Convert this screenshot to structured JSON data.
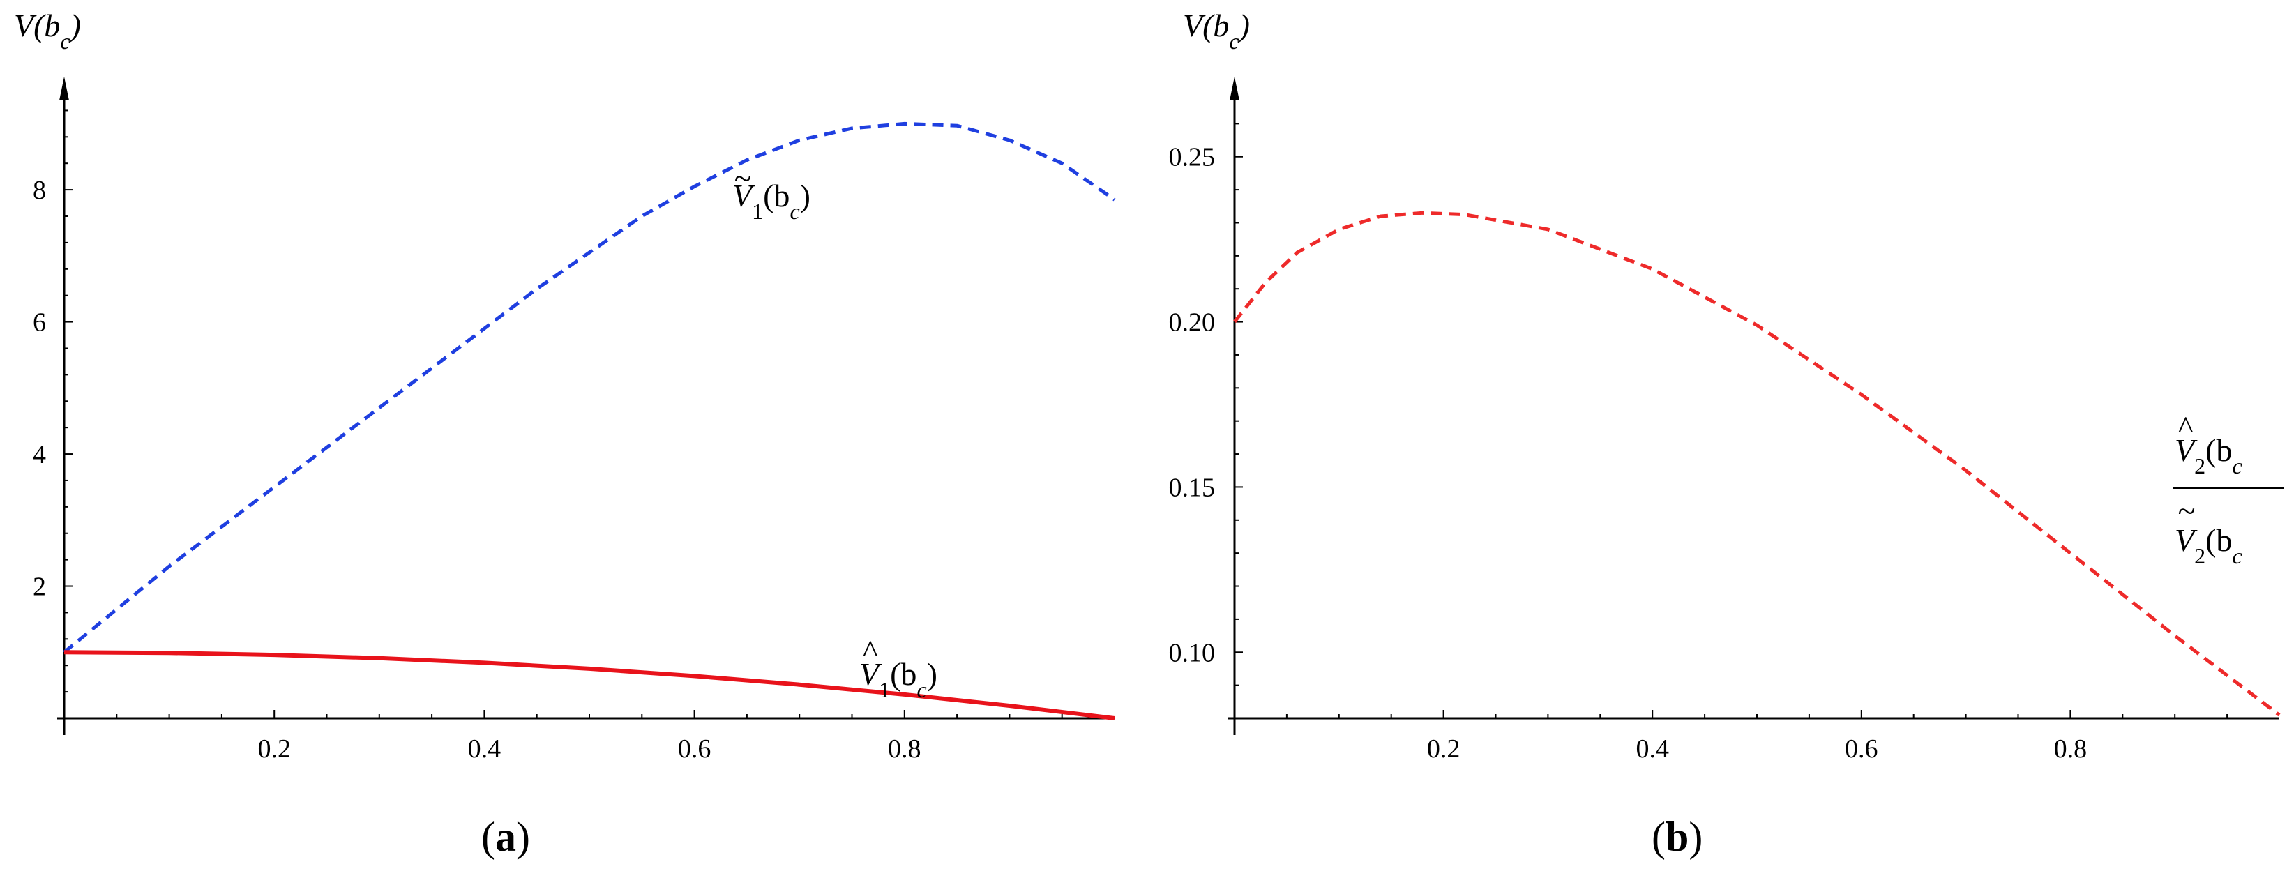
{
  "chart_data": [
    {
      "type": "line",
      "panel": "a",
      "caption_open": "(",
      "caption_letter": "a",
      "caption_close": ")",
      "ylabel": "V(b",
      "ylabel_sub": "c",
      "ylabel_close": ")",
      "xlim": [
        0,
        1
      ],
      "ylim": [
        0,
        9.5
      ],
      "x_ticks": [
        0.2,
        0.4,
        0.6,
        0.8
      ],
      "x_tick_labels": [
        "0.2",
        "0.4",
        "0.6",
        "0.8"
      ],
      "y_ticks": [
        2,
        4,
        6,
        8
      ],
      "y_tick_labels": [
        "2",
        "4",
        "6",
        "8"
      ],
      "series": [
        {
          "name": "Ṽ1(bc)",
          "label_main": "V",
          "label_accent": "~",
          "label_sub": "1",
          "label_arg": "(b",
          "label_arg_sub": "c",
          "label_close": ")",
          "style": "dashed",
          "color": "#1f3fe0",
          "x": [
            0,
            0.05,
            0.1,
            0.15,
            0.2,
            0.25,
            0.3,
            0.35,
            0.4,
            0.45,
            0.5,
            0.55,
            0.6,
            0.65,
            0.7,
            0.75,
            0.8,
            0.85,
            0.9,
            0.95,
            1.0
          ],
          "y": [
            1.0,
            1.65,
            2.3,
            2.9,
            3.5,
            4.1,
            4.7,
            5.3,
            5.9,
            6.5,
            7.05,
            7.6,
            8.05,
            8.45,
            8.75,
            8.93,
            9.0,
            8.97,
            8.75,
            8.4,
            7.85
          ]
        },
        {
          "name": "V̂1(bc)",
          "label_main": "V",
          "label_accent": "^",
          "label_sub": "1",
          "label_arg": "(b",
          "label_arg_sub": "c",
          "label_close": ")",
          "style": "solid",
          "color": "#e8131b",
          "x": [
            0,
            0.1,
            0.2,
            0.3,
            0.4,
            0.5,
            0.6,
            0.7,
            0.8,
            0.9,
            1.0
          ],
          "y": [
            1.0,
            0.99,
            0.96,
            0.91,
            0.84,
            0.75,
            0.64,
            0.51,
            0.36,
            0.19,
            0.0
          ]
        }
      ]
    },
    {
      "type": "line",
      "panel": "b",
      "caption_open": "(",
      "caption_letter": "b",
      "caption_close": ")",
      "ylabel": "V(b",
      "ylabel_sub": "c",
      "ylabel_close": ")",
      "xlim": [
        0,
        1
      ],
      "ylim": [
        0.08,
        0.27
      ],
      "x_ticks": [
        0.2,
        0.4,
        0.6,
        0.8
      ],
      "x_tick_labels": [
        "0.2",
        "0.4",
        "0.6",
        "0.8"
      ],
      "y_ticks": [
        0.1,
        0.15,
        0.2,
        0.25
      ],
      "y_tick_labels": [
        "0.10",
        "0.15",
        "0.20",
        "0.25"
      ],
      "annotation": {
        "top_main": "V",
        "top_accent": "^",
        "top_sub": "2",
        "top_arg": "(b",
        "top_arg_sub": "c",
        "bottom_main": "V",
        "bottom_accent": "~",
        "bottom_sub": "2",
        "bottom_arg": "(b",
        "bottom_arg_sub": "c"
      },
      "series": [
        {
          "style": "dashed",
          "color": "#ee2a2a",
          "x": [
            0,
            0.03,
            0.06,
            0.1,
            0.14,
            0.18,
            0.22,
            0.3,
            0.4,
            0.5,
            0.6,
            0.7,
            0.8,
            0.9,
            1.0
          ],
          "y": [
            0.2,
            0.212,
            0.221,
            0.228,
            0.232,
            0.233,
            0.2325,
            0.228,
            0.216,
            0.199,
            0.178,
            0.155,
            0.13,
            0.105,
            0.081
          ]
        }
      ]
    }
  ]
}
